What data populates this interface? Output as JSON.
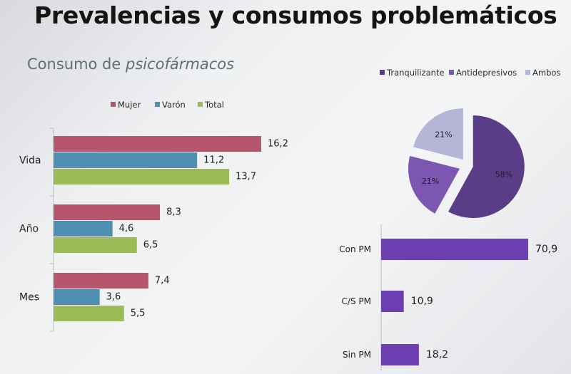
{
  "header": {
    "title": "Prevalencias y consumos problemáticos",
    "subtitle_prefix": "Consumo de ",
    "subtitle_italic": "psicofármacos"
  },
  "chart_data": [
    {
      "type": "bar",
      "orientation": "horizontal",
      "categories": [
        "Vida",
        "Año",
        "Mes"
      ],
      "series": [
        {
          "name": "Mujer",
          "color": "#b5566a",
          "values": [
            16.2,
            8.3,
            7.4
          ],
          "labels": [
            "16,2",
            "8,3",
            "7,4"
          ]
        },
        {
          "name": "Varón",
          "color": "#4f8fb0",
          "values": [
            11.2,
            4.6,
            3.6
          ],
          "labels": [
            "11,2",
            "4,6",
            "3,6"
          ]
        },
        {
          "name": "Total",
          "color": "#9bbb59",
          "values": [
            13.7,
            6.5,
            5.5
          ],
          "labels": [
            "13,7",
            "6,5",
            "5,5"
          ]
        }
      ],
      "xlim": [
        0,
        18
      ],
      "legend": "top",
      "grid": false
    },
    {
      "type": "pie",
      "exploded": true,
      "slices": [
        {
          "name": "Tranquilizante",
          "value": 58,
          "label": "58%",
          "color": "#5b3c86"
        },
        {
          "name": "Antidepresivos",
          "value": 21,
          "label": "21%",
          "color": "#7b57b2"
        },
        {
          "name": "Ambos",
          "value": 21,
          "label": "21%",
          "color": "#b5b5d8"
        }
      ],
      "legend": "top"
    },
    {
      "type": "bar",
      "orientation": "horizontal",
      "categories": [
        "Con PM",
        "C/S PM",
        "Sin PM"
      ],
      "values": [
        70.9,
        10.9,
        18.2
      ],
      "labels": [
        "70,9",
        "10,9",
        "18,2"
      ],
      "color": "#6c3fb0",
      "xlim": [
        0,
        75
      ],
      "grid": false
    }
  ]
}
